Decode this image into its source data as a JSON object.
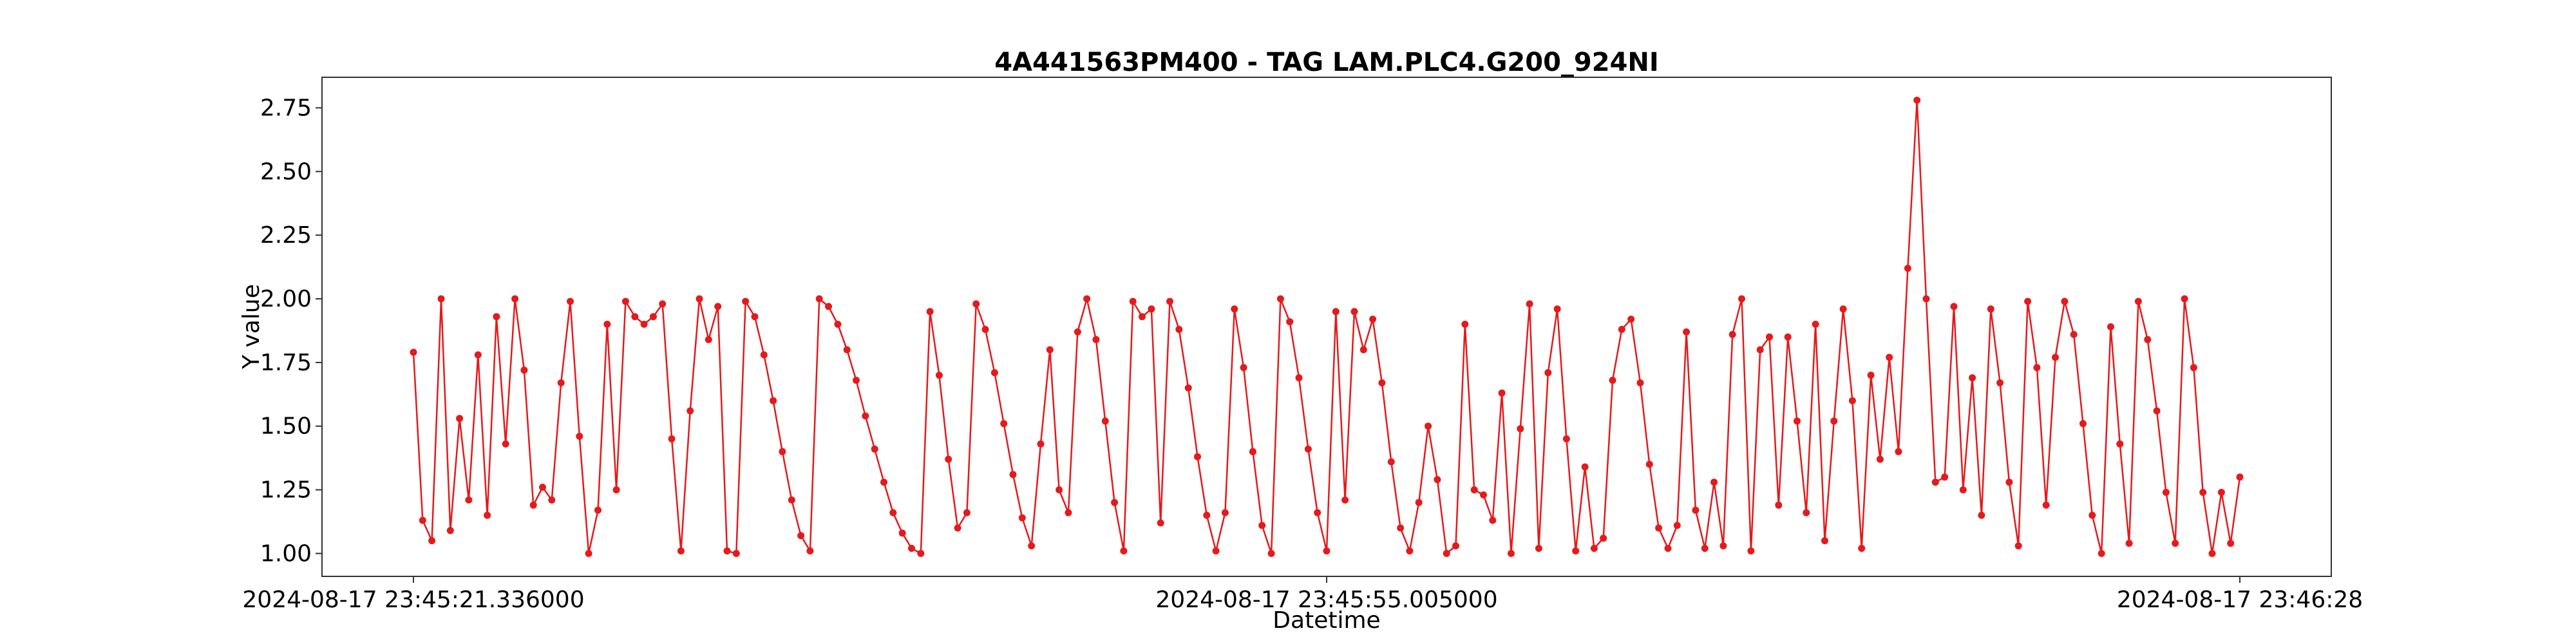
{
  "chart_data": {
    "type": "line",
    "title": "4A441563PM400 - TAG LAM.PLC4.G200_924NI",
    "xlabel": "Datetime",
    "ylabel": "Y value",
    "x_tick_labels": [
      "2024-08-17 23:45:21.336000",
      "2024-08-17 23:45:55.005000",
      "2024-08-17 23:46:28"
    ],
    "y_ticks": [
      1.0,
      1.25,
      1.5,
      1.75,
      2.0,
      2.25,
      2.5,
      2.75
    ],
    "y_tick_labels": [
      "1.00",
      "1.25",
      "1.50",
      "1.75",
      "2.00",
      "2.25",
      "2.50",
      "2.75"
    ],
    "ylim": [
      0.91,
      2.87
    ],
    "grid": false,
    "legend": "none",
    "color": "#e41a1c",
    "series": [
      {
        "values": [
          1.79,
          1.13,
          1.05,
          2.0,
          1.09,
          1.53,
          1.21,
          1.78,
          1.15,
          1.93,
          1.43,
          2.0,
          1.72,
          1.19,
          1.26,
          1.21,
          1.67,
          1.99,
          1.46,
          1.0,
          1.17,
          1.9,
          1.25,
          1.99,
          1.93,
          1.9,
          1.93,
          1.98,
          1.45,
          1.01,
          1.56,
          2.0,
          1.84,
          1.97,
          1.01,
          1.0,
          1.99,
          1.93,
          1.78,
          1.6,
          1.4,
          1.21,
          1.07,
          1.01,
          2.0,
          1.97,
          1.9,
          1.8,
          1.68,
          1.54,
          1.41,
          1.28,
          1.16,
          1.08,
          1.02,
          1.0,
          1.95,
          1.7,
          1.37,
          1.1,
          1.16,
          1.98,
          1.88,
          1.71,
          1.51,
          1.31,
          1.14,
          1.03,
          1.43,
          1.8,
          1.25,
          1.16,
          1.87,
          2.0,
          1.84,
          1.52,
          1.2,
          1.01,
          1.99,
          1.93,
          1.96,
          1.12,
          1.99,
          1.88,
          1.65,
          1.38,
          1.15,
          1.01,
          1.16,
          1.96,
          1.73,
          1.4,
          1.11,
          1.0,
          2.0,
          1.91,
          1.69,
          1.41,
          1.16,
          1.01,
          1.95,
          1.21,
          1.95,
          1.8,
          1.92,
          1.67,
          1.36,
          1.1,
          1.01,
          1.2,
          1.5,
          1.29,
          1.0,
          1.03,
          1.9,
          1.25,
          1.23,
          1.13,
          1.63,
          1.0,
          1.49,
          1.98,
          1.02,
          1.71,
          1.96,
          1.45,
          1.01,
          1.34,
          1.02,
          1.06,
          1.68,
          1.88,
          1.92,
          1.67,
          1.35,
          1.1,
          1.02,
          1.11,
          1.87,
          1.17,
          1.02,
          1.28,
          1.03,
          1.86,
          2.0,
          1.01,
          1.8,
          1.85,
          1.19,
          1.85,
          1.52,
          1.16,
          1.9,
          1.05,
          1.52,
          1.96,
          1.6,
          1.02,
          1.7,
          1.37,
          1.77,
          1.4,
          2.12,
          2.78,
          2.0,
          1.28,
          1.3,
          1.97,
          1.25,
          1.69,
          1.15,
          1.96,
          1.67,
          1.28,
          1.03,
          1.99,
          1.73,
          1.19,
          1.77,
          1.99,
          1.86,
          1.51,
          1.15,
          1.0,
          1.89,
          1.43,
          1.04,
          1.99,
          1.84,
          1.56,
          1.24,
          1.04,
          2.0,
          1.73,
          1.24,
          1.0,
          1.24,
          1.04,
          1.3
        ]
      }
    ]
  }
}
